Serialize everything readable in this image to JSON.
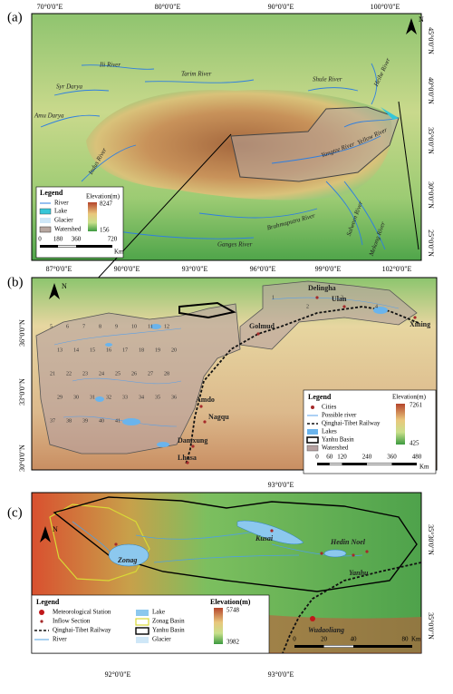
{
  "panel_a": {
    "label": "(a)",
    "north": "N",
    "lon_labels": [
      "70°0'0\"E",
      "80°0'0\"E",
      "90°0'0\"E",
      "100°0'0\"E"
    ],
    "lat_labels": [
      "45°0'0\"N",
      "40°0'0\"N",
      "35°0'0\"N",
      "30°0'0\"N",
      "25°0'0\"N"
    ],
    "rivers": [
      "Ili River",
      "Tarim River",
      "Syr Darya",
      "Amu Darya",
      "Shule River",
      "Heihe River",
      "Indus River",
      "Yangtze River",
      "Yellow River",
      "Brahmaputra River",
      "Ganges River",
      "Salween River",
      "Mekong River"
    ],
    "legend": {
      "title": "Legend",
      "items": [
        "River",
        "Lake",
        "Glacier",
        "Watershed"
      ],
      "elevation_title": "Elevation(m)",
      "elevation_max": 8247,
      "elevation_min": 156,
      "scale": [
        0,
        180,
        360,
        720
      ],
      "scale_unit": "Km"
    }
  },
  "panel_b": {
    "label": "(b)",
    "north": "N",
    "lon_labels": [
      "87°0'0\"E",
      "90°0'0\"E",
      "93°0'0\"E",
      "96°0'0\"E",
      "99°0'0\"E",
      "102°0'0\"E"
    ],
    "lat_labels": [
      "36°0'0\"N",
      "33°0'0\"N",
      "30°0'0\"N"
    ],
    "cities": [
      "Delingha",
      "Ulan",
      "Xining",
      "Golmud",
      "Amdo",
      "Nagqu",
      "Damxung",
      "Lhasa"
    ],
    "watershed_ids": [
      1,
      2,
      3,
      4,
      5,
      6,
      7,
      8,
      9,
      10,
      11,
      12,
      13,
      14,
      15,
      16,
      17,
      18,
      19,
      20,
      21,
      22,
      23,
      24,
      25,
      26,
      27,
      28,
      29,
      30,
      31,
      32,
      33,
      34,
      35,
      36,
      37,
      38,
      39,
      40,
      41
    ],
    "legend": {
      "title": "Legend",
      "items": [
        "Cities",
        "Possible river",
        "Qinghai-Tibet Railway",
        "Lakes",
        "Yanhu Basin",
        "Watershed"
      ],
      "elevation_title": "Elevation(m)",
      "elevation_max": 7261,
      "elevation_min": 425,
      "scale": [
        0,
        60,
        120,
        240,
        360,
        480
      ],
      "scale_unit": "Km"
    }
  },
  "panel_c": {
    "label": "(c)",
    "north": "N",
    "lon_top": [
      "93°0'0\"E"
    ],
    "lon_bottom": [
      "92°0'0\"E",
      "93°0'0\"E"
    ],
    "lat_labels": [
      "35°30'0\"N",
      "35°0'0\"N"
    ],
    "places": [
      "Zonag",
      "Kusai",
      "Hedin Noel",
      "Yanhu",
      "Wudaoliang"
    ],
    "legend": {
      "title": "Legend",
      "items": [
        "Meteorological Station",
        "Inflow Section",
        "Qinghai-Tibet Railway",
        "River",
        "Lake",
        "Zonag Basin",
        "Yanhu Basin",
        "Glacier"
      ],
      "elevation_title": "Elevation(m)",
      "elevation_max": 5748,
      "elevation_min": 3982,
      "scale": [
        0,
        20,
        40,
        80
      ],
      "scale_unit": "Km"
    }
  }
}
